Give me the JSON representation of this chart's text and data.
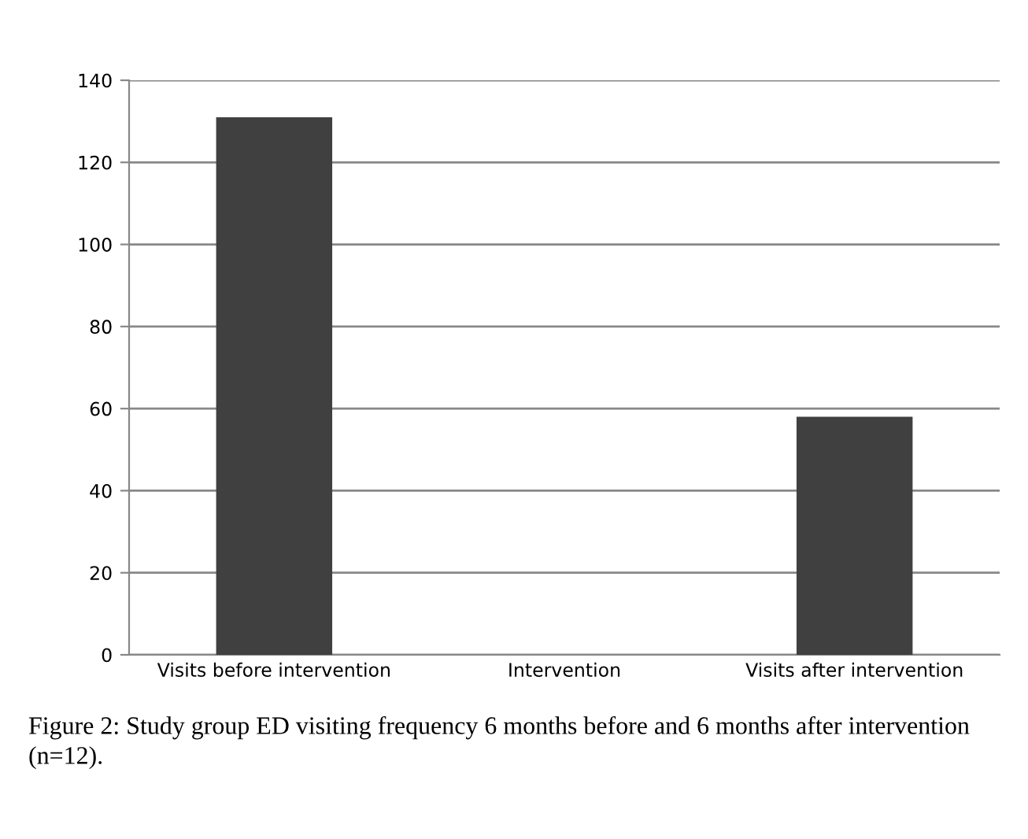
{
  "chart_data": {
    "type": "bar",
    "categories": [
      "Visits before intervention",
      "Intervention",
      "Visits after intervention"
    ],
    "values": [
      131,
      0,
      58
    ],
    "color": "#404040",
    "ylim": [
      0,
      140
    ],
    "yticks": [
      0,
      20,
      40,
      60,
      80,
      100,
      120,
      140
    ],
    "grid": "y",
    "annotations": [
      "Figure 2: Study group ED visiting frequency 6 months before and 6 months after intervention (n=12)."
    ]
  }
}
